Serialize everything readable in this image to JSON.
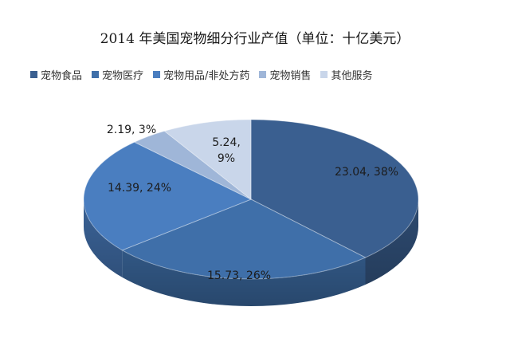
{
  "chart_data": {
    "type": "pie",
    "title": "2014 年美国宠物细分行业产值（单位：十亿美元）",
    "legend_position": "top",
    "slices": [
      {
        "name": "宠物食品",
        "value": 23.04,
        "percent": 38,
        "color": "#3a5f90",
        "label_lines": [
          "23.04, 38%"
        ]
      },
      {
        "name": "宠物医疗",
        "value": 15.73,
        "percent": 26,
        "color": "#3f6fa9",
        "label_lines": [
          "15.73, 26%"
        ]
      },
      {
        "name": "宠物用品/非处方药",
        "value": 14.39,
        "percent": 24,
        "color": "#4a7ec0",
        "label_lines": [
          "14.39, 24%"
        ]
      },
      {
        "name": "宠物销售",
        "value": 2.19,
        "percent": 3,
        "color": "#9fb6d8",
        "label_lines": [
          "2.19, 3%"
        ]
      },
      {
        "name": "其他服务",
        "value": 5.24,
        "percent": 9,
        "color": "#c9d6ea",
        "label_lines": [
          "5.24,",
          "9%"
        ]
      }
    ]
  }
}
